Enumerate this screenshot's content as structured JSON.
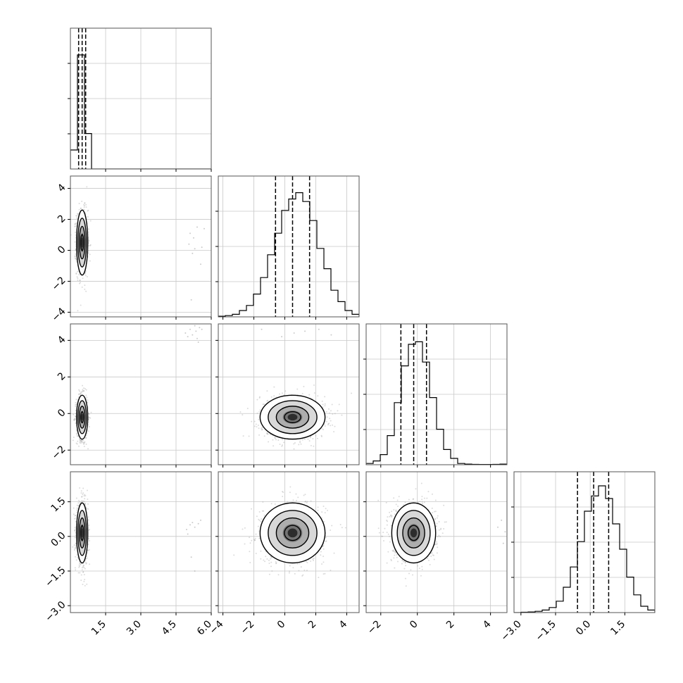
{
  "chart_data": {
    "type": "corner",
    "grid": true,
    "style": {
      "axis_color": "#555555",
      "grid_color": "#c8c8c8",
      "line_color": "#000000",
      "scatter_color": "#9a9a9a",
      "background": "#ffffff"
    },
    "params": [
      {
        "range": [
          0,
          6.0
        ],
        "ticks": [
          1.5,
          3.0,
          4.5,
          6.0
        ],
        "tick_labels": [
          "1.5",
          "3.0",
          "4.5",
          "6.0"
        ],
        "quantiles": [
          0.35,
          0.5,
          0.65
        ],
        "hist": {
          "edges_start": 0,
          "bin_width": 0.3,
          "counts": [
            0.15,
            0.9,
            0.28,
            0,
            0,
            0,
            0,
            0,
            0,
            0,
            0,
            0,
            0,
            0,
            0,
            0,
            0,
            0,
            0,
            0
          ],
          "max": 1.0
        },
        "center": 0.5,
        "sd": 0.12
      },
      {
        "range": [
          -4.3,
          4.8
        ],
        "ticks": [
          -4,
          -2,
          0,
          2,
          4
        ],
        "tick_labels": [
          "−4",
          "−2",
          "0",
          "2",
          "4"
        ],
        "quantiles": [
          -0.6,
          0.5,
          1.6
        ],
        "hist": {
          "edges_start": -4.3,
          "bin_width": 0.455,
          "counts": [
            0.005,
            0.01,
            0.02,
            0.05,
            0.09,
            0.18,
            0.31,
            0.49,
            0.66,
            0.84,
            0.93,
            0.98,
            0.91,
            0.76,
            0.54,
            0.38,
            0.21,
            0.12,
            0.05,
            0.02
          ],
          "max": 1.0
        },
        "center": 0.5,
        "sd": 1.05
      },
      {
        "range": [
          -2.8,
          4.9
        ],
        "ticks": [
          -2,
          0,
          2,
          4
        ],
        "tick_labels": [
          "−2",
          "0",
          "2",
          "4"
        ],
        "quantiles": [
          -0.9,
          -0.2,
          0.5
        ],
        "hist": {
          "edges_start": -2.8,
          "bin_width": 0.385,
          "counts": [
            0.01,
            0.03,
            0.08,
            0.23,
            0.49,
            0.78,
            0.95,
            0.97,
            0.81,
            0.53,
            0.28,
            0.12,
            0.05,
            0.01,
            0.005,
            0.003,
            0.002,
            0.002,
            0.003,
            0.005
          ],
          "max": 1.0
        },
        "center": -0.2,
        "sd": 0.6
      },
      {
        "range": [
          -3.3,
          2.8
        ],
        "ticks": [
          -3.0,
          -1.5,
          0.0,
          1.5
        ],
        "tick_labels": [
          "−3.0",
          "−1.5",
          "0.0",
          "1.5"
        ],
        "quantiles": [
          -0.55,
          0.15,
          0.8
        ],
        "hist": {
          "edges_start": -3.3,
          "bin_width": 0.305,
          "counts": [
            0.0,
            0.003,
            0.005,
            0.01,
            0.02,
            0.04,
            0.09,
            0.2,
            0.36,
            0.56,
            0.8,
            0.92,
            1.0,
            0.9,
            0.7,
            0.5,
            0.28,
            0.14,
            0.05,
            0.02
          ],
          "max": 1.0
        },
        "center": 0.15,
        "sd": 0.65
      }
    ],
    "pairs": [
      {
        "row": 1,
        "col": 0,
        "rho": 0.0,
        "outliers": [
          [
            5.05,
            0.4
          ],
          [
            5.1,
            1.1
          ],
          [
            5.2,
            -0.2
          ],
          [
            5.3,
            0.1
          ],
          [
            5.4,
            1.5
          ],
          [
            5.6,
            0.2
          ],
          [
            5.55,
            -0.9
          ],
          [
            5.25,
            0.8
          ],
          [
            5.15,
            -3.2
          ],
          [
            5.7,
            1.4
          ]
        ]
      },
      {
        "row": 2,
        "col": 0,
        "rho": 0.0,
        "outliers": [
          [
            4.9,
            4.4
          ],
          [
            5.0,
            4.2
          ],
          [
            5.1,
            4.6
          ],
          [
            5.2,
            4.3
          ],
          [
            5.35,
            4.5
          ],
          [
            5.4,
            4.1
          ],
          [
            5.5,
            4.7
          ],
          [
            5.45,
            3.9
          ],
          [
            5.6,
            4.6
          ],
          [
            5.3,
            4.8
          ]
        ]
      },
      {
        "row": 2,
        "col": 1,
        "rho": 0.0,
        "outliers": [
          [
            -1.5,
            4.6
          ],
          [
            -0.2,
            4.2
          ],
          [
            0.6,
            4.4
          ],
          [
            1.3,
            4.5
          ],
          [
            2.2,
            4.6
          ],
          [
            3.0,
            4.3
          ]
        ]
      },
      {
        "row": 3,
        "col": 0,
        "rho": 0.0,
        "outliers": [
          [
            4.95,
            0.3
          ],
          [
            5.1,
            0.5
          ],
          [
            5.2,
            0.6
          ],
          [
            5.3,
            0.4
          ],
          [
            5.45,
            0.55
          ],
          [
            5.55,
            0.7
          ],
          [
            5.15,
            -0.9
          ],
          [
            5.3,
            -1.5
          ],
          [
            5.0,
            0.1
          ]
        ]
      },
      {
        "row": 3,
        "col": 1,
        "rho": 0.0,
        "outliers": []
      },
      {
        "row": 3,
        "col": 2,
        "rho": 0.0,
        "outliers": [
          [
            4.4,
            0.4
          ],
          [
            4.6,
            0.7
          ],
          [
            4.8,
            0.2
          ],
          [
            4.7,
            -0.3
          ]
        ]
      }
    ]
  }
}
